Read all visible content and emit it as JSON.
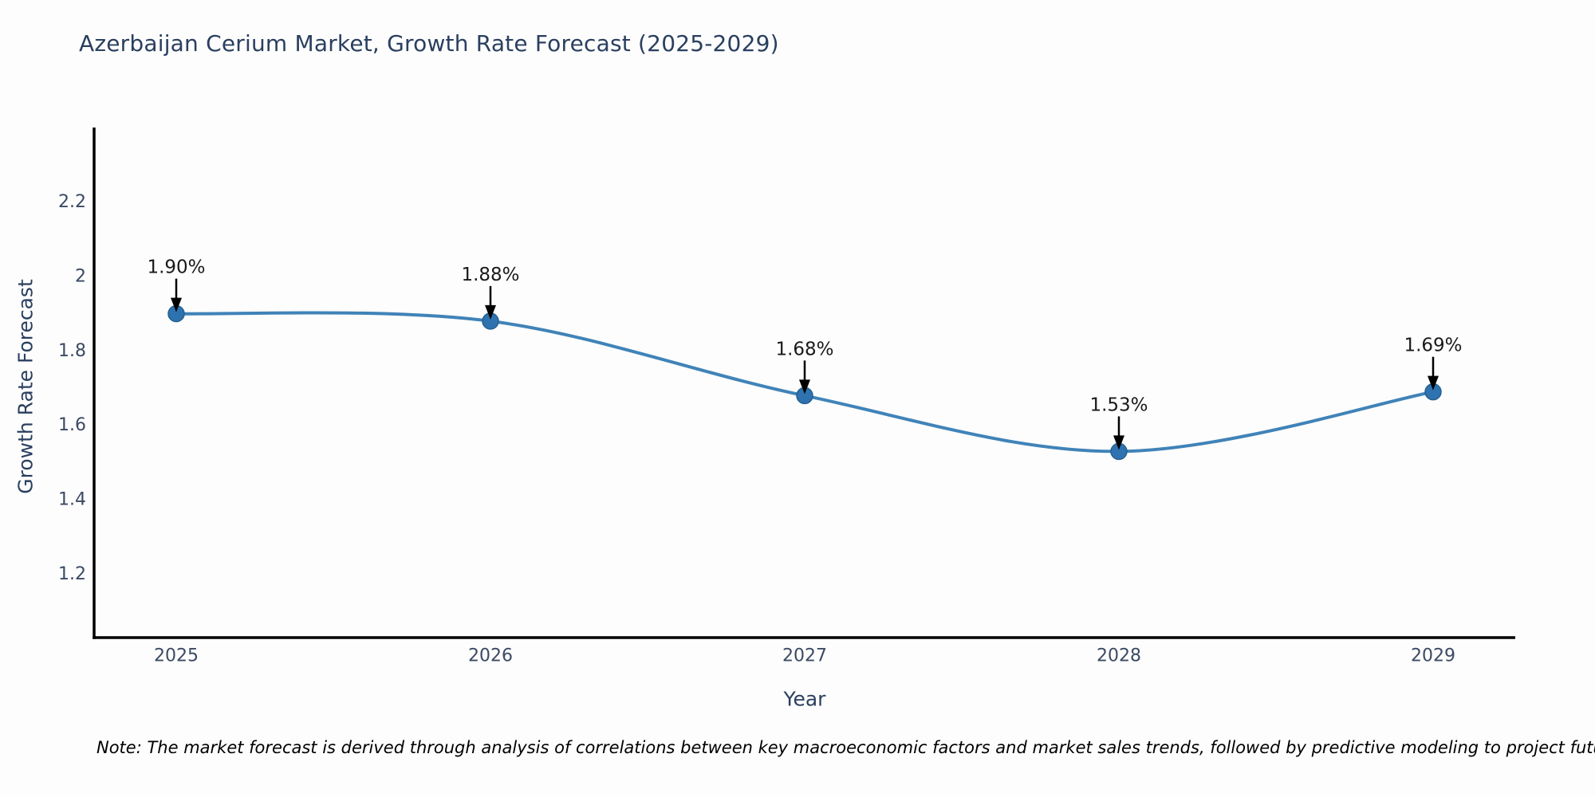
{
  "title": "Azerbaijan Cerium Market, Growth Rate Forecast (2025-2029)",
  "note": "Note: The market forecast is derived through analysis of correlations between key macroeconomic factors and market sales trends, followed by predictive modeling to project future sales",
  "colors": {
    "title": "#2a3f5f",
    "tick_label": "#3b4a63",
    "axis_title": "#2a3f5f",
    "axis_line": "#000000",
    "line": "#4083b8",
    "marker_fill": "#2e73b0",
    "marker_edge": "#27608f",
    "annotation_text": "#1a1a1a",
    "annotation_arrow": "#000000",
    "note_text": "#000000",
    "background": "#fdfdfd"
  },
  "chart_data": {
    "type": "line",
    "title": "Azerbaijan Cerium Market, Growth Rate Forecast (2025-2029)",
    "xlabel": "Year",
    "ylabel": "Growth Rate Forecast",
    "categories": [
      "2025",
      "2026",
      "2027",
      "2028",
      "2029"
    ],
    "values": [
      1.9,
      1.88,
      1.68,
      1.53,
      1.69
    ],
    "point_labels": [
      "1.90%",
      "1.88%",
      "1.68%",
      "1.53%",
      "1.69%"
    ],
    "ytick_values": [
      2.2,
      2.0,
      1.8,
      1.6,
      1.4,
      1.2
    ],
    "ytick_labels": [
      "2.2",
      "2",
      "1.8",
      "1.6",
      "1.4",
      "1.2"
    ],
    "ylim": [
      1.03,
      2.4
    ],
    "line_shape": "spline",
    "grid": false,
    "legend": false
  }
}
